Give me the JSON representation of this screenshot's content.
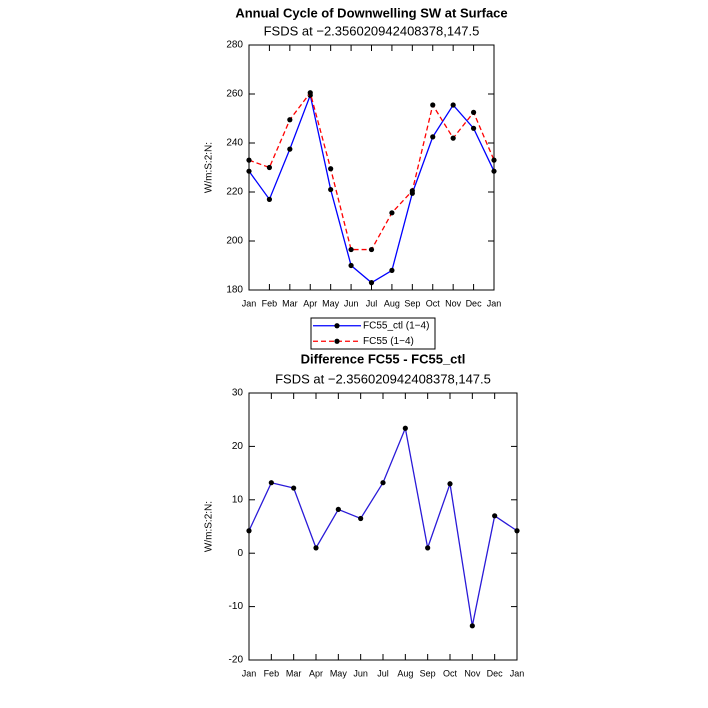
{
  "chart_data": [
    {
      "type": "line",
      "title": "Annual Cycle of Downwelling SW at Surface",
      "subtitle": "FSDS at −2.356020942408378,147.5",
      "y_label": "W/m:S:2:N:",
      "categories": [
        "Jan",
        "Feb",
        "Mar",
        "Apr",
        "May",
        "Jun",
        "Jul",
        "Aug",
        "Sep",
        "Oct",
        "Nov",
        "Dec",
        "Jan"
      ],
      "series": [
        {
          "name": "FC55_ctl (1−4)",
          "color": "#0000ff",
          "dash": false,
          "values": [
            228.5,
            217,
            237.5,
            259.5,
            221,
            190,
            183,
            188,
            219.5,
            242.5,
            255.5,
            246,
            228.5
          ]
        },
        {
          "name": "FC55 (1−4)",
          "color": "#ff0000",
          "dash": true,
          "values": [
            233,
            230,
            249.5,
            260.5,
            229.5,
            196.5,
            196.5,
            211.5,
            220.5,
            255.5,
            242,
            252.5,
            233
          ]
        }
      ],
      "ylim": [
        180,
        280
      ],
      "yticks": [
        180,
        200,
        220,
        240,
        260,
        280
      ],
      "legend": "bottom"
    },
    {
      "type": "line",
      "title": "Difference FC55 - FC55_ctl",
      "subtitle": "FSDS at −2.356020942408378,147.5",
      "y_label": "W/m:S:2:N:",
      "categories": [
        "Jan",
        "Feb",
        "Mar",
        "Apr",
        "May",
        "Jun",
        "Jul",
        "Aug",
        "Sep",
        "Oct",
        "Nov",
        "Dec",
        "Jan"
      ],
      "series": [
        {
          "color": "#2a1ad8",
          "dash": false,
          "values": [
            4.2,
            13.2,
            12.2,
            1,
            8.2,
            6.5,
            13.2,
            23.4,
            1,
            13,
            -13.6,
            7,
            4.2
          ]
        }
      ],
      "ylim": [
        -20,
        30
      ],
      "yticks": [
        -20,
        -10,
        0,
        10,
        20,
        30
      ]
    }
  ]
}
